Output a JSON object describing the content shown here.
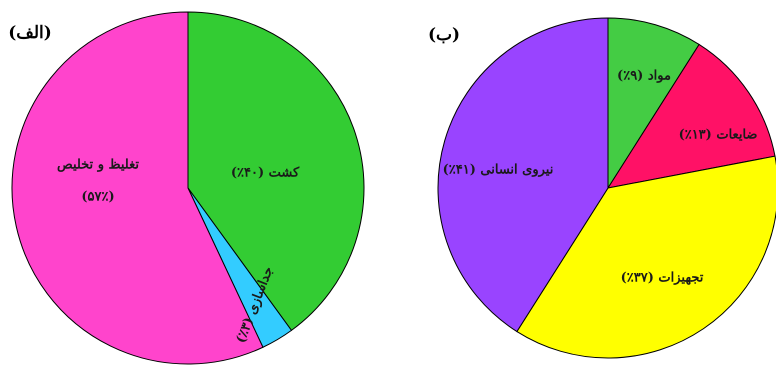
{
  "chart_data": [
    {
      "type": "pie",
      "title": "(الف)",
      "slices": [
        {
          "label": "کشت (۴۰٪)",
          "value": 40,
          "color": "#33cc33"
        },
        {
          "label": "جداسازی (۳٪)",
          "value": 3,
          "color": "#33ccff"
        },
        {
          "label": "تغلیظ و تخلیص",
          "label2": "(۵۷٪)",
          "value": 57,
          "color": "#ff44cc"
        }
      ]
    },
    {
      "type": "pie",
      "title": "(ب)",
      "slices": [
        {
          "label": "مواد (۹٪)",
          "value": 9,
          "color": "#44cc44"
        },
        {
          "label": "ضایعات (۱۳٪)",
          "value": 13,
          "color": "#ff1166"
        },
        {
          "label": "تجهیزات (۳۷٪)",
          "value": 37,
          "color": "#ffff00"
        },
        {
          "label": "نیروی انسانی (۴۱٪)",
          "value": 41,
          "color": "#9944ff"
        }
      ]
    }
  ]
}
